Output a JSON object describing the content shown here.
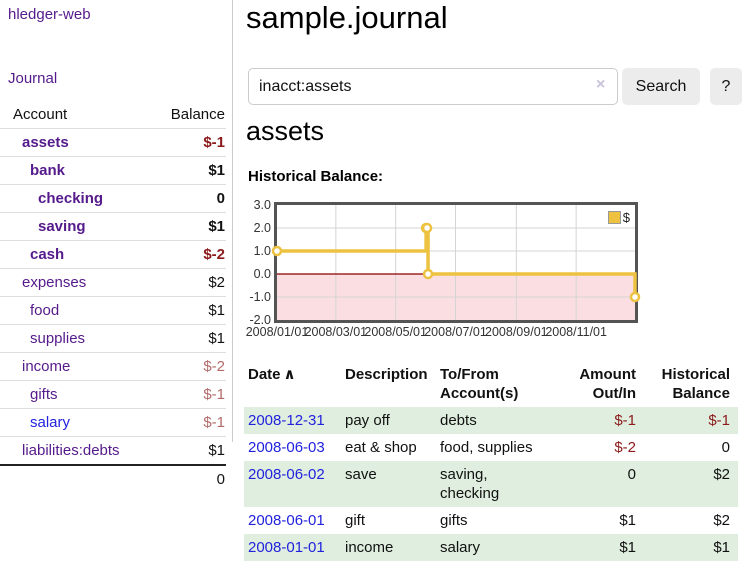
{
  "app": {
    "title": "hledger-web",
    "nav_journal": "Journal"
  },
  "colors": {
    "link_purple": "#551a8b",
    "link_blue": "#2222dd",
    "negative_strong": "#8b1a1a",
    "negative_soft": "#b36a6a",
    "row_green": "#dfeedf",
    "button_bg": "#ececec",
    "chart_series": "#edc240",
    "chart_negative_fill": "#fbdee1",
    "chart_zero_line": "#8b0000"
  },
  "sidebar": {
    "header": {
      "account": "Account",
      "balance": "Balance"
    },
    "accounts": [
      {
        "name": "assets",
        "balance": "$-1",
        "indent": 1,
        "bold": true,
        "neg": "strong"
      },
      {
        "name": "bank",
        "balance": "$1",
        "indent": 2,
        "bold": true
      },
      {
        "name": "checking",
        "balance": "0",
        "indent": 3,
        "bold": true
      },
      {
        "name": "saving",
        "balance": "$1",
        "indent": 3,
        "bold": true
      },
      {
        "name": "cash",
        "balance": "$-2",
        "indent": 2,
        "bold": true,
        "neg": "strong"
      },
      {
        "name": "expenses",
        "balance": "$2",
        "indent": 1
      },
      {
        "name": "food",
        "balance": "$1",
        "indent": 2
      },
      {
        "name": "supplies",
        "balance": "$1",
        "indent": 2
      },
      {
        "name": "income",
        "balance": "$-2",
        "indent": 1,
        "neg": "soft"
      },
      {
        "name": "gifts",
        "balance": "$-1",
        "indent": 2,
        "neg": "soft"
      },
      {
        "name": "salary",
        "balance": "$-1",
        "indent": 2,
        "neg": "soft",
        "blue": true
      },
      {
        "name": "liabilities:debts",
        "balance": "$1",
        "indent": 1
      }
    ],
    "total": "0"
  },
  "header": {
    "title": "sample.journal"
  },
  "search": {
    "query": "inacct:assets",
    "clear_icon": "×",
    "button": "Search",
    "help_button": "?"
  },
  "account_page": {
    "heading": "assets",
    "chart_title": "Historical Balance:"
  },
  "chart_data": {
    "type": "line",
    "title": "Historical Balance:",
    "legend": "$",
    "legend_position": "top-right",
    "grid": true,
    "x_unit": "days since 2008-01-01",
    "xlim": [
      0,
      365
    ],
    "ylim": [
      -2,
      3
    ],
    "y_ticks": [
      "3.0",
      "2.0",
      "1.0",
      "0.0",
      "-1.0",
      "-2.0"
    ],
    "y_gridlines": [
      2,
      1,
      -1
    ],
    "x_ticks": [
      {
        "label": "2008/01/01",
        "day": 0
      },
      {
        "label": "2008/03/01",
        "day": 60
      },
      {
        "label": "2008/05/01",
        "day": 121
      },
      {
        "label": "2008/07/01",
        "day": 182
      },
      {
        "label": "2008/09/01",
        "day": 244
      },
      {
        "label": "2008/11/01",
        "day": 305
      }
    ],
    "series": [
      {
        "name": "$",
        "steps": true,
        "points": [
          {
            "date": "2008-01-01",
            "day": 0,
            "y": 1
          },
          {
            "date": "2008-06-01",
            "day": 152,
            "y": 2
          },
          {
            "date": "2008-06-02",
            "day": 153,
            "y": 2
          },
          {
            "date": "2008-06-03",
            "day": 154,
            "y": 0
          },
          {
            "date": "2008-12-31",
            "day": 365,
            "y": -1
          }
        ]
      }
    ]
  },
  "register": {
    "col_date": "Date",
    "sort_icon": "∧",
    "col_description": "Description",
    "col_account_line1": "To/From",
    "col_account_line2": "Account(s)",
    "col_amount_line1": "Amount",
    "col_amount_line2": "Out/In",
    "col_balance_line1": "Historical",
    "col_balance_line2": "Balance",
    "rows": [
      {
        "date": "2008-12-31",
        "description": "pay off",
        "accounts": "debts",
        "amount": "$-1",
        "balance": "$-1",
        "amount_neg": true,
        "balance_neg": true
      },
      {
        "date": "2008-06-03",
        "description": "eat & shop",
        "accounts": "food, supplies",
        "amount": "$-2",
        "balance": "0",
        "amount_neg": true
      },
      {
        "date": "2008-06-02",
        "description": "save",
        "accounts": "saving, checking",
        "amount": "0",
        "balance": "$2"
      },
      {
        "date": "2008-06-01",
        "description": "gift",
        "accounts": "gifts",
        "amount": "$1",
        "balance": "$2"
      },
      {
        "date": "2008-01-01",
        "description": "income",
        "accounts": "salary",
        "amount": "$1",
        "balance": "$1"
      }
    ]
  }
}
